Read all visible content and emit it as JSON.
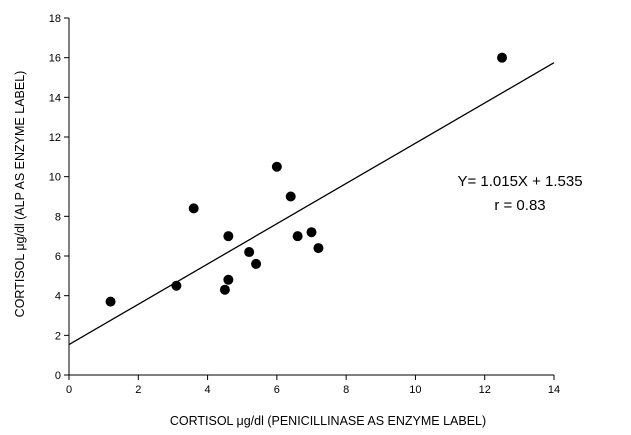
{
  "chart_data": {
    "type": "scatter",
    "title": "",
    "xlabel": "CORTISOL μg/dl (PENICILLINASE AS ENZYME LABEL)",
    "ylabel": "CORTISOL μg/dl (ALP AS ENZYME LABEL)",
    "xlim": [
      0,
      14
    ],
    "ylim": [
      0,
      18
    ],
    "xticks": [
      0,
      2,
      4,
      6,
      8,
      10,
      12,
      14
    ],
    "yticks": [
      0,
      2,
      4,
      6,
      8,
      10,
      12,
      14,
      16,
      18
    ],
    "grid": false,
    "points": [
      {
        "x": 1.2,
        "y": 3.7
      },
      {
        "x": 3.1,
        "y": 4.5
      },
      {
        "x": 3.6,
        "y": 8.4
      },
      {
        "x": 4.5,
        "y": 4.3
      },
      {
        "x": 4.6,
        "y": 4.8
      },
      {
        "x": 4.6,
        "y": 7.0
      },
      {
        "x": 5.2,
        "y": 6.2
      },
      {
        "x": 5.4,
        "y": 5.6
      },
      {
        "x": 6.0,
        "y": 10.5
      },
      {
        "x": 6.4,
        "y": 9.0
      },
      {
        "x": 6.6,
        "y": 7.0
      },
      {
        "x": 7.0,
        "y": 7.2
      },
      {
        "x": 7.2,
        "y": 6.4
      },
      {
        "x": 12.5,
        "y": 16.0
      }
    ],
    "regression": {
      "slope": 1.015,
      "intercept": 1.535
    },
    "annotations": {
      "equation": "Y= 1.015X + 1.535",
      "r": "r = 0.83"
    },
    "color": "#000000"
  }
}
